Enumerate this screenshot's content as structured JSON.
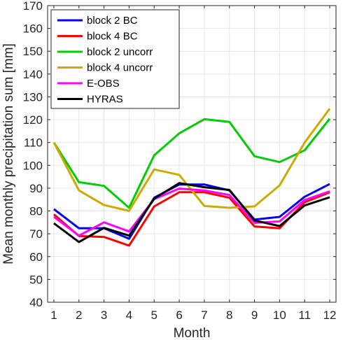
{
  "chart_data": {
    "type": "line",
    "title": "",
    "xlabel": "Month",
    "ylabel": "Mean monthly precipitation sum [mm]",
    "x": [
      1,
      2,
      3,
      4,
      5,
      6,
      7,
      8,
      9,
      10,
      11,
      12
    ],
    "xlim": [
      0.75,
      12.25
    ],
    "ylim": [
      40,
      170
    ],
    "xticks": [
      1,
      2,
      3,
      4,
      5,
      6,
      7,
      8,
      9,
      10,
      11,
      12
    ],
    "yticks": [
      40,
      50,
      60,
      70,
      80,
      90,
      100,
      110,
      120,
      130,
      140,
      150,
      160,
      170
    ],
    "grid": true,
    "legend_location": "top-left",
    "series": [
      {
        "name": "block 2 BC",
        "color": "#0000ff",
        "values": [
          80.8,
          72.4,
          72.4,
          67.8,
          85.8,
          91.6,
          91.6,
          89.0,
          76.2,
          77.4,
          86.2,
          91.8
        ]
      },
      {
        "name": "block 4 BC",
        "color": "#ff0000",
        "values": [
          78.5,
          69.0,
          68.6,
          64.8,
          82.0,
          88.2,
          88.2,
          85.8,
          73.2,
          72.4,
          83.8,
          88.2
        ]
      },
      {
        "name": "block 2 uncorr",
        "color": "#00cc00",
        "values": [
          110.0,
          92.6,
          91.0,
          81.4,
          104.4,
          114.0,
          120.2,
          119.0,
          104.0,
          101.4,
          106.6,
          120.4
        ]
      },
      {
        "name": "block 4 uncorr",
        "color": "#ccaa00",
        "values": [
          110.0,
          89.0,
          82.6,
          80.0,
          98.2,
          95.8,
          82.2,
          81.4,
          82.0,
          91.2,
          110.0,
          124.8
        ]
      },
      {
        "name": "E-OBS",
        "color": "#ff00ff",
        "values": [
          77.4,
          69.2,
          75.0,
          71.0,
          85.2,
          89.8,
          89.0,
          87.0,
          74.8,
          75.4,
          84.8,
          88.6
        ]
      },
      {
        "name": "HYRAS",
        "color": "#000000",
        "values": [
          74.6,
          66.4,
          72.6,
          69.2,
          85.4,
          92.2,
          90.4,
          89.2,
          75.8,
          73.4,
          82.4,
          86.0
        ]
      }
    ]
  }
}
